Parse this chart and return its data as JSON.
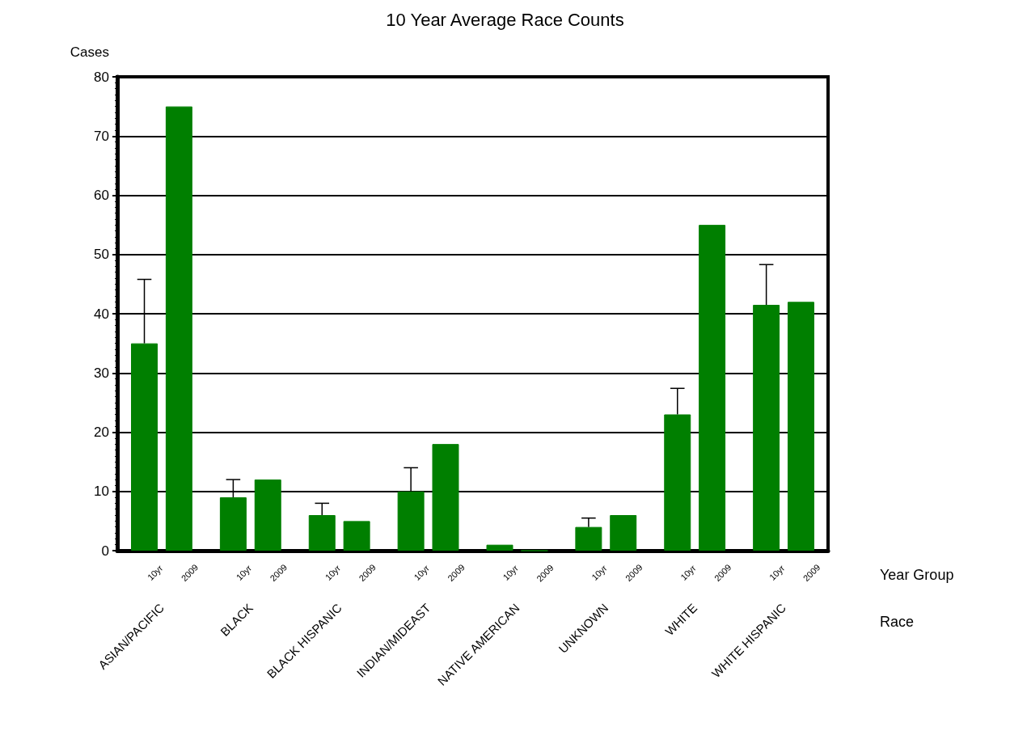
{
  "chart_data": {
    "type": "bar",
    "title": "10 Year Average Race Counts",
    "ylabel": "Cases",
    "xlabel": "Race",
    "legend_title": "Year Group",
    "categories": [
      "ASIAN/PACIFIC",
      "BLACK",
      "BLACK HISPANIC",
      "INDIAN/MIDEAST",
      "NATIVE AMERICAN",
      "UNKNOWN",
      "WHITE",
      "WHITE HISPANIC"
    ],
    "series": [
      {
        "name": "10yr",
        "color": "#007f00",
        "values": [
          35,
          9,
          6,
          10,
          1,
          4,
          23,
          41.5
        ],
        "errors": [
          [
            35,
            45.8
          ],
          [
            9,
            12
          ],
          [
            6,
            8
          ],
          [
            10,
            14
          ],
          null,
          [
            4,
            5.5
          ],
          [
            23,
            27.4
          ],
          [
            41.5,
            48.3
          ]
        ]
      },
      {
        "name": "2009",
        "color": "#007f00",
        "values": [
          75,
          12,
          5,
          18,
          0,
          6,
          55,
          42
        ]
      }
    ],
    "ylim": [
      0,
      80
    ],
    "yticks": [
      0,
      10,
      20,
      30,
      40,
      50,
      60,
      70,
      80
    ],
    "grid": "y",
    "legend": false
  }
}
